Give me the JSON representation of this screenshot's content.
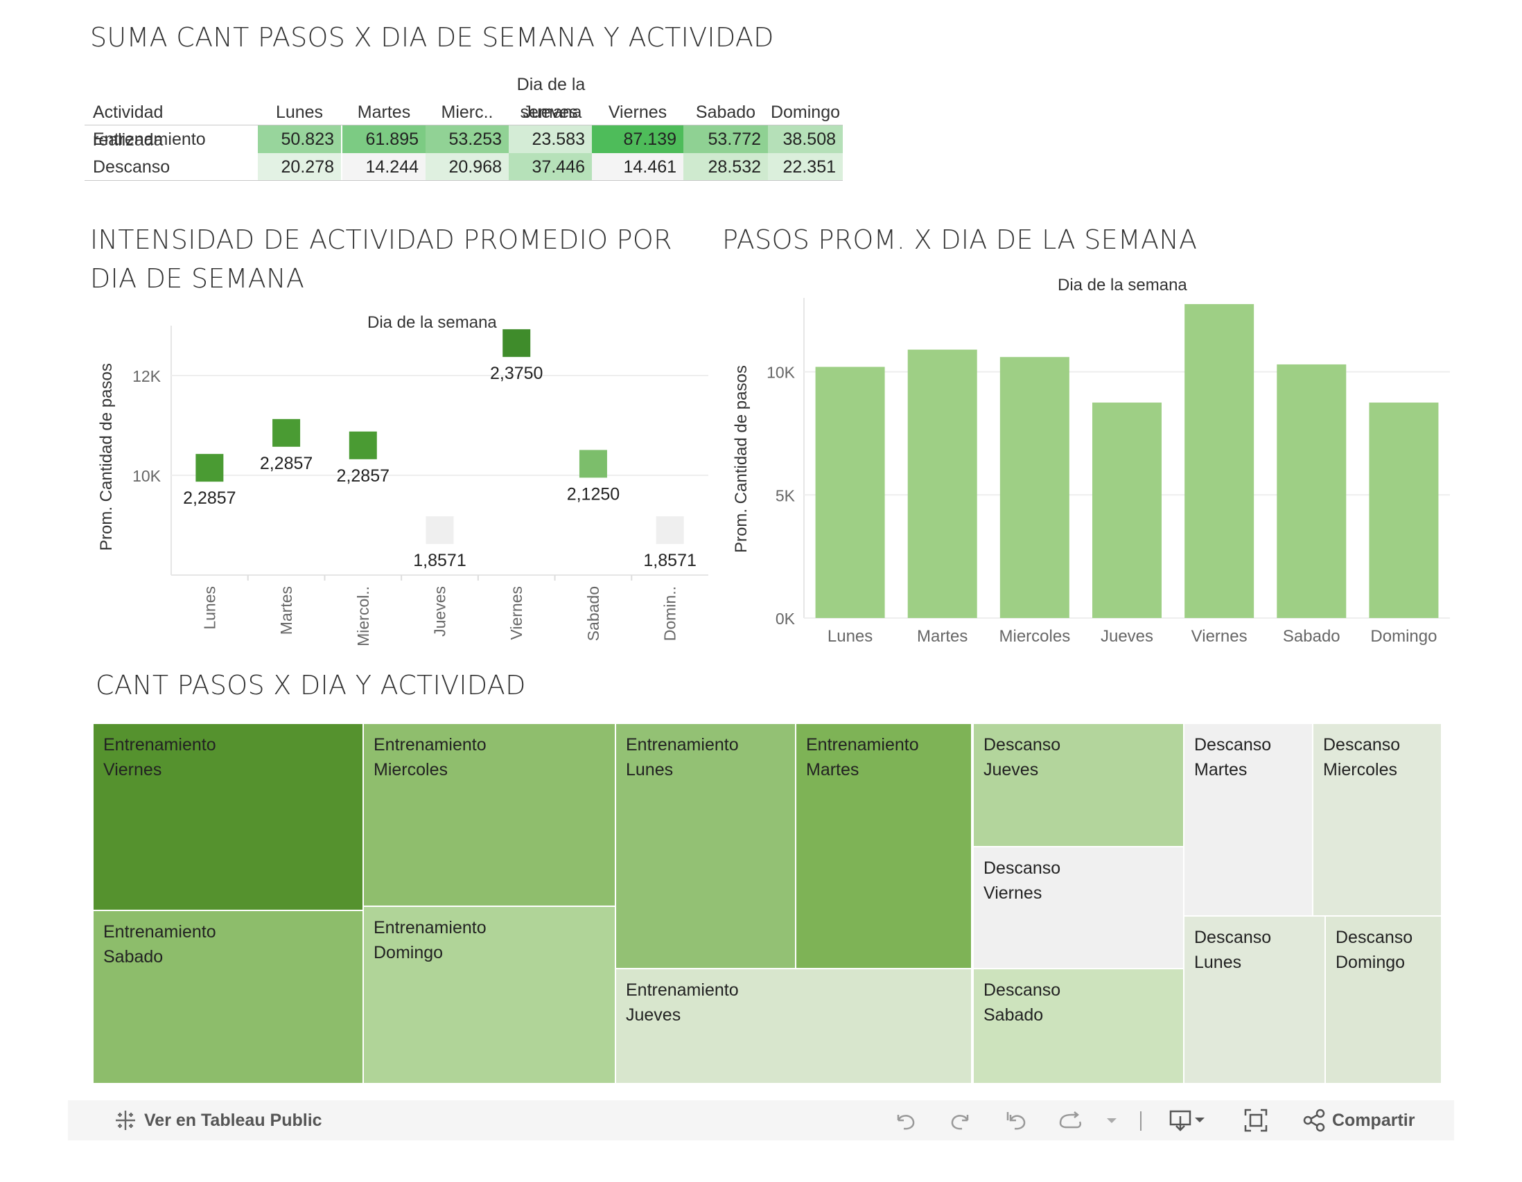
{
  "colors": {
    "accent_dark": "#3f8c2b",
    "bar_green": "#9ecf85",
    "grid": "#eeeeee"
  },
  "heat_table": {
    "title": "SUMA CANT PASOS X DIA DE SEMANA Y ACTIVIDAD",
    "col_group_label": "Dia de la semana",
    "row_header": "Actividad realizada",
    "columns": [
      "Lunes",
      "Martes",
      "Mierc..",
      "Jueves",
      "Viernes",
      "Sabado",
      "Domingo"
    ],
    "rows": [
      {
        "label": "Entrenamiento",
        "values": [
          "50.823",
          "61.895",
          "53.253",
          "23.583",
          "87.139",
          "53.772",
          "38.508"
        ],
        "colors": [
          "#98d59c",
          "#7ccb83",
          "#91d295",
          "#d4ecd6",
          "#4ebc5a",
          "#8fd193",
          "#b5e0b8"
        ]
      },
      {
        "label": "Descanso",
        "values": [
          "20.278",
          "14.244",
          "20.968",
          "37.446",
          "14.461",
          "28.532",
          "22.351"
        ],
        "colors": [
          "#e3f2e4",
          "#f4f4f4",
          "#dff0e0",
          "#b6e1b9",
          "#f4f4f4",
          "#cfeacf",
          "#dbefdc"
        ]
      }
    ]
  },
  "intensity_chart": {
    "title_line1": "INTENSIDAD DE ACTIVIDAD PROMEDIO POR",
    "title_line2": "DIA DE SEMANA",
    "xlabel": "Dia de la semana",
    "ylabel": "Prom. Cantidad de pasos",
    "y_ticks": [
      "12K",
      "10K"
    ]
  },
  "bar_chart_text": {
    "title": "PASOS PROM. X DIA DE LA SEMANA",
    "xlabel": "Dia de la semana",
    "ylabel": "Prom. Cantidad de pasos",
    "y_ticks": [
      "10K",
      "5K",
      "0K"
    ]
  },
  "treemap": {
    "title": "CANT PASOS X DIA Y ACTIVIDAD",
    "cells": [
      {
        "l1": "Entrenamiento",
        "l2": "Viernes",
        "color": "#55922e"
      },
      {
        "l1": "Entrenamiento",
        "l2": "Sabado",
        "color": "#8dbd6b"
      },
      {
        "l1": "Entrenamiento",
        "l2": "Miercoles",
        "color": "#8fbe6d"
      },
      {
        "l1": "Entrenamiento",
        "l2": "Domingo",
        "color": "#b0d498"
      },
      {
        "l1": "Entrenamiento",
        "l2": "Lunes",
        "color": "#93c174"
      },
      {
        "l1": "Entrenamiento",
        "l2": "Martes",
        "color": "#7eb356"
      },
      {
        "l1": "Entrenamiento",
        "l2": "Jueves",
        "color": "#d8e6cd"
      },
      {
        "l1": "Descanso",
        "l2": "Jueves",
        "color": "#b3d59c"
      },
      {
        "l1": "Descanso",
        "l2": "Viernes",
        "color": "#f0f0f0"
      },
      {
        "l1": "Descanso",
        "l2": "Sabado",
        "color": "#cde3bd"
      },
      {
        "l1": "Descanso",
        "l2": "Martes",
        "color": "#f0f0f0"
      },
      {
        "l1": "Descanso",
        "l2": "Miercoles",
        "color": "#e1e9da"
      },
      {
        "l1": "Descanso",
        "l2": "Lunes",
        "color": "#e1e9da"
      },
      {
        "l1": "Descanso",
        "l2": "Domingo",
        "color": "#dde7d4"
      }
    ]
  },
  "toolbar": {
    "view_label": "Ver en Tableau Public",
    "share_label": "Compartir",
    "icons": [
      "tableau-icon",
      "undo-icon",
      "redo-icon",
      "revert-icon",
      "refresh-icon",
      "dropdown-icon",
      "download-icon",
      "fullscreen-icon",
      "share-icon"
    ]
  },
  "chart_data": [
    {
      "type": "scatter",
      "title": "INTENSIDAD DE ACTIVIDAD PROMEDIO POR DIA DE SEMANA",
      "xlabel": "Dia de la semana",
      "ylabel": "Prom. Cantidad de pasos",
      "categories": [
        "Lunes",
        "Martes",
        "Miercol..",
        "Jueves",
        "Viernes",
        "Sabado",
        "Domin.."
      ],
      "values": [
        10150,
        10850,
        10600,
        8900,
        12650,
        10230,
        8900
      ],
      "labels": [
        "2,2857",
        "2,2857",
        "2,2857",
        "1,8571",
        "2,3750",
        "2,1250",
        "1,8571"
      ],
      "colors": [
        "#4a9b33",
        "#4a9b33",
        "#4a9b33",
        "#efefef",
        "#3f8c2b",
        "#7cbe6b",
        "#efefef"
      ],
      "y_ticks": [
        10000,
        12000
      ],
      "ylim": [
        8000,
        13000
      ]
    },
    {
      "type": "bar",
      "title": "PASOS PROM. X DIA DE LA SEMANA",
      "xlabel": "Dia de la semana",
      "ylabel": "Prom. Cantidad de pasos",
      "categories": [
        "Lunes",
        "Martes",
        "Miercoles",
        "Jueves",
        "Viernes",
        "Sabado",
        "Domingo"
      ],
      "values": [
        10200,
        10900,
        10600,
        8750,
        12750,
        10300,
        8750
      ],
      "y_ticks": [
        0,
        5000,
        10000
      ],
      "ylim": [
        0,
        13000
      ]
    }
  ]
}
